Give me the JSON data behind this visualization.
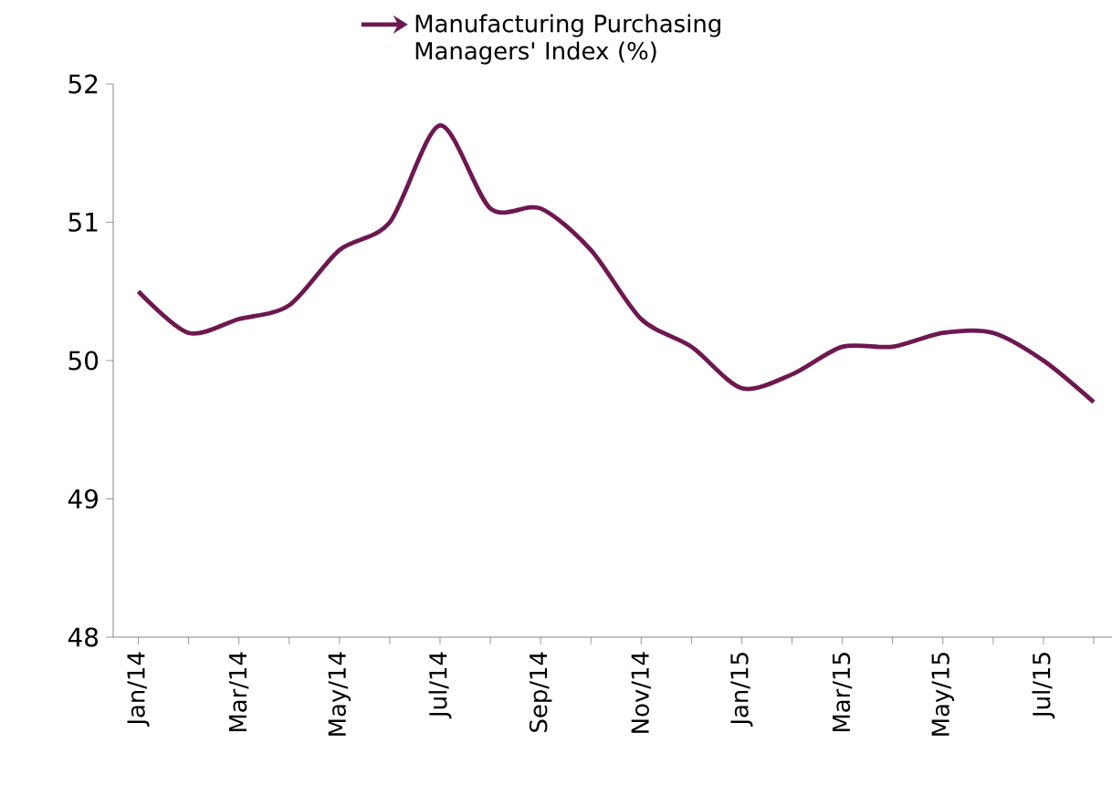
{
  "chart_data": {
    "type": "line",
    "categories": [
      "Jan/14",
      null,
      "Mar/14",
      null,
      "May/14",
      null,
      "Jul/14",
      null,
      "Sep/14",
      null,
      "Nov/14",
      null,
      "Jan/15",
      null,
      "Mar/15",
      null,
      "May/15",
      null,
      "Jul/15",
      null
    ],
    "series": [
      {
        "name": "Manufacturing Purchasing Managers' Index (%)",
        "color": "#6e1850",
        "values": [
          50.5,
          50.2,
          50.3,
          50.4,
          50.8,
          51.0,
          51.7,
          51.1,
          51.1,
          50.8,
          50.3,
          50.1,
          49.8,
          49.9,
          50.1,
          50.1,
          50.2,
          50.2,
          50.0,
          49.7
        ]
      }
    ],
    "ylim": [
      48,
      52
    ],
    "yticks": [
      48,
      49,
      50,
      51,
      52
    ],
    "grid": false,
    "legend": "top",
    "marker": "none",
    "line_style": "solid"
  }
}
